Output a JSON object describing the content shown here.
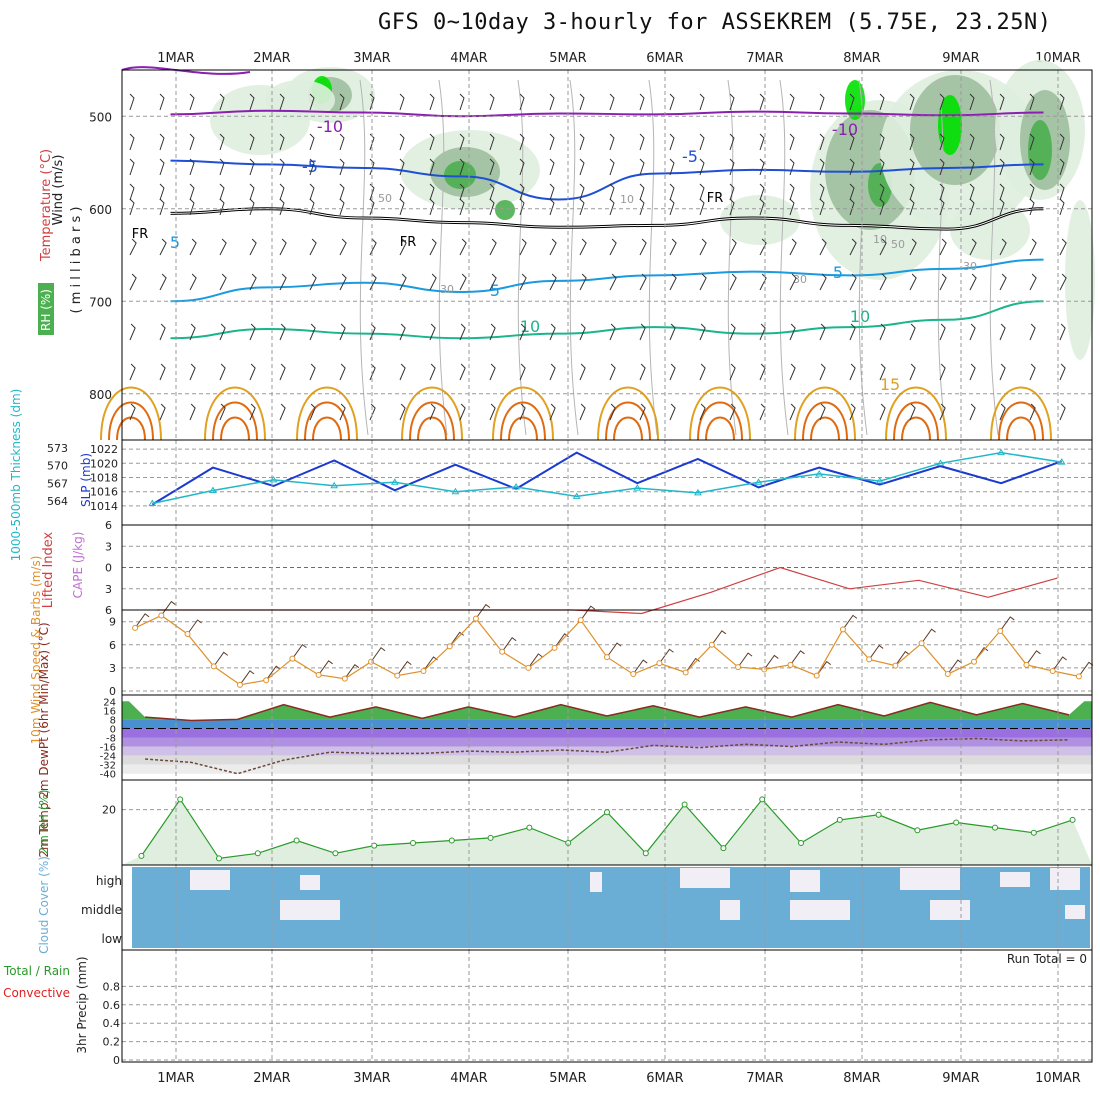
{
  "title": "GFS 0~10day 3-hourly for ASSEKREM (5.75E, 23.25N)",
  "colors": {
    "grid": "#9a9a9a",
    "temp_neg10": "#8a1fb0",
    "temp_neg5": "#1f4fd6",
    "temp_5": "#1a9ae0",
    "temp_10": "#1ab58a",
    "temp_15": "#e0a020",
    "temp_20": "#e06a10",
    "freezing": "#000000",
    "rh_light": "#dfeedf",
    "rh_mid": "#9fbf9f",
    "rh_high": "#4caf50",
    "rh_sat": "#00e000",
    "slp": "#1a3ad0",
    "thickness": "#20b8c8",
    "lifted": "#d04040",
    "wind10m": "#e0902a",
    "rh2m": "#2a9a2a",
    "cloud": "#6aaed6",
    "cloud_gap": "#f2eef6",
    "precip_label": "#2a9a2a",
    "conv_label": "#e02020"
  },
  "chart_data": [
    {
      "type": "line",
      "panel": "upper-air",
      "x_ticks": [
        "1MAR",
        "2MAR",
        "3MAR",
        "4MAR",
        "5MAR",
        "6MAR",
        "7MAR",
        "8MAR",
        "9MAR",
        "10MAR"
      ],
      "ylabel_temperature": "Temperature (°C)",
      "ylabel_wind": "Wind (m/s)",
      "ylabel_rh": "RH (%)",
      "ylabel_pressure": "( m i l l i b a r s )",
      "y_ticks": [
        "500",
        "600",
        "700",
        "800"
      ],
      "ylim": [
        850,
        450
      ],
      "contour_labels": [
        "-10",
        "-10",
        "-5",
        "-5",
        "5",
        "5",
        "5",
        "10",
        "10",
        "15",
        "FR",
        "FR",
        "FR"
      ],
      "rh_labels": [
        "30",
        "30",
        "30",
        "10",
        "10",
        "50",
        "50"
      ],
      "series": [
        {
          "name": "-10",
          "values": [
            498,
            494,
            496,
            500,
            497,
            498,
            495,
            497,
            499,
            496
          ]
        },
        {
          "name": "-5",
          "values": [
            548,
            552,
            556,
            565,
            590,
            562,
            558,
            560,
            556,
            552
          ]
        },
        {
          "name": "FR",
          "values": [
            605,
            600,
            610,
            615,
            620,
            618,
            610,
            618,
            622,
            600
          ]
        },
        {
          "name": "5",
          "values": [
            700,
            685,
            680,
            690,
            678,
            672,
            668,
            672,
            665,
            655
          ]
        },
        {
          "name": "10",
          "values": [
            740,
            730,
            735,
            740,
            735,
            728,
            735,
            728,
            720,
            700
          ]
        }
      ]
    },
    {
      "type": "line",
      "panel": "slp-thickness",
      "ylabel_left": "1000-500mb Thickness (dm)",
      "ylabel_right": "SLP (mb)",
      "left_ticks": [
        "573",
        "570",
        "567",
        "564"
      ],
      "right_ticks": [
        "1022",
        "1020",
        "1018",
        "1016",
        "1014"
      ],
      "series": [
        {
          "name": "SLP (mb)",
          "values": [
            1014.2,
            1019.4,
            1016.8,
            1020.4,
            1016.2,
            1019.8,
            1016.4,
            1021.5,
            1017.2,
            1020.6,
            1016.6,
            1019.4,
            1017.0,
            1019.6,
            1017.2,
            1020.3
          ]
        },
        {
          "name": "1000-500mb Thickness (dm)",
          "values": [
            563.6,
            565.8,
            567.6,
            566.6,
            567.2,
            565.6,
            566.4,
            564.8,
            566.2,
            565.4,
            567.2,
            568.6,
            567.4,
            570.4,
            572.2,
            570.6
          ]
        }
      ]
    },
    {
      "type": "line",
      "panel": "lifted-index",
      "ylabel_left": "Lifted Index",
      "ylabel_right": "CAPE (J/kg)",
      "y_ticks": [
        "6",
        "3",
        "0",
        "3",
        "6"
      ],
      "series": [
        {
          "name": "Lifted Index",
          "values": [
            6,
            6,
            6,
            6,
            6,
            6,
            6,
            6.5,
            3.5,
            0,
            3,
            1.8,
            4.2,
            1.5
          ]
        }
      ]
    },
    {
      "type": "line",
      "panel": "wind10m",
      "ylabel": "10m Wind Speed & Barbs (m/s)",
      "y_ticks": [
        "9",
        "6",
        "3",
        "0"
      ],
      "series": [
        {
          "name": "10m Wind Speed",
          "values": [
            8.2,
            9.8,
            7.4,
            3.2,
            0.8,
            1.4,
            4.2,
            2.1,
            1.6,
            3.8,
            2.0,
            2.6,
            5.8,
            9.4,
            5.1,
            3.0,
            5.6,
            9.2,
            4.4,
            2.2,
            3.6,
            2.4,
            6.0,
            3.1,
            2.8,
            3.4,
            2.0,
            8.0,
            4.1,
            3.3,
            6.2,
            2.2,
            3.8,
            7.8,
            3.4,
            2.6,
            1.9
          ]
        }
      ]
    },
    {
      "type": "area",
      "panel": "temperature",
      "ylabel": "2m Temp 2m DewPt (6hr Min/Max) (°C)",
      "y_ticks": [
        "24",
        "16",
        "8",
        "0",
        "-8",
        "-16",
        "-24",
        "-32",
        "-40"
      ],
      "series": [
        {
          "name": "2m Temp",
          "values": [
            10,
            7,
            8,
            21,
            10,
            19,
            9,
            19,
            10,
            21,
            11,
            20,
            10,
            19,
            10,
            21,
            11,
            23,
            12,
            22,
            12
          ]
        },
        {
          "name": "2m DewPt",
          "values": [
            -27,
            -30,
            -40,
            -28,
            -21,
            -22,
            -22,
            -20,
            -21,
            -19,
            -21,
            -15,
            -17,
            -14,
            -16,
            -12,
            -14,
            -10,
            -9,
            -11,
            -10
          ]
        }
      ]
    },
    {
      "type": "area",
      "panel": "rh2m",
      "ylabel": "2m RH (%)",
      "y_ticks": [
        "20"
      ],
      "series": [
        {
          "name": "2m RH",
          "values": [
            2,
            24,
            1,
            3,
            8,
            3,
            6,
            7,
            8,
            9,
            13,
            7,
            19,
            3,
            22,
            5,
            24,
            7,
            16,
            18,
            12,
            15,
            13,
            11,
            16
          ]
        }
      ]
    },
    {
      "type": "heatmap",
      "panel": "cloud",
      "ylabel": "Cloud Cover (%)",
      "rows": [
        "high",
        "middle",
        "low"
      ]
    },
    {
      "type": "bar",
      "panel": "precip",
      "ylabel_left": "Total / Rain",
      "ylabel_left2": "Convective",
      "ylabel": "3hr Precip (mm)",
      "y_ticks": [
        "0.8",
        "0.6",
        "0.4",
        "0.2",
        "0"
      ],
      "annotation": "Run Total = 0",
      "values": []
    }
  ]
}
